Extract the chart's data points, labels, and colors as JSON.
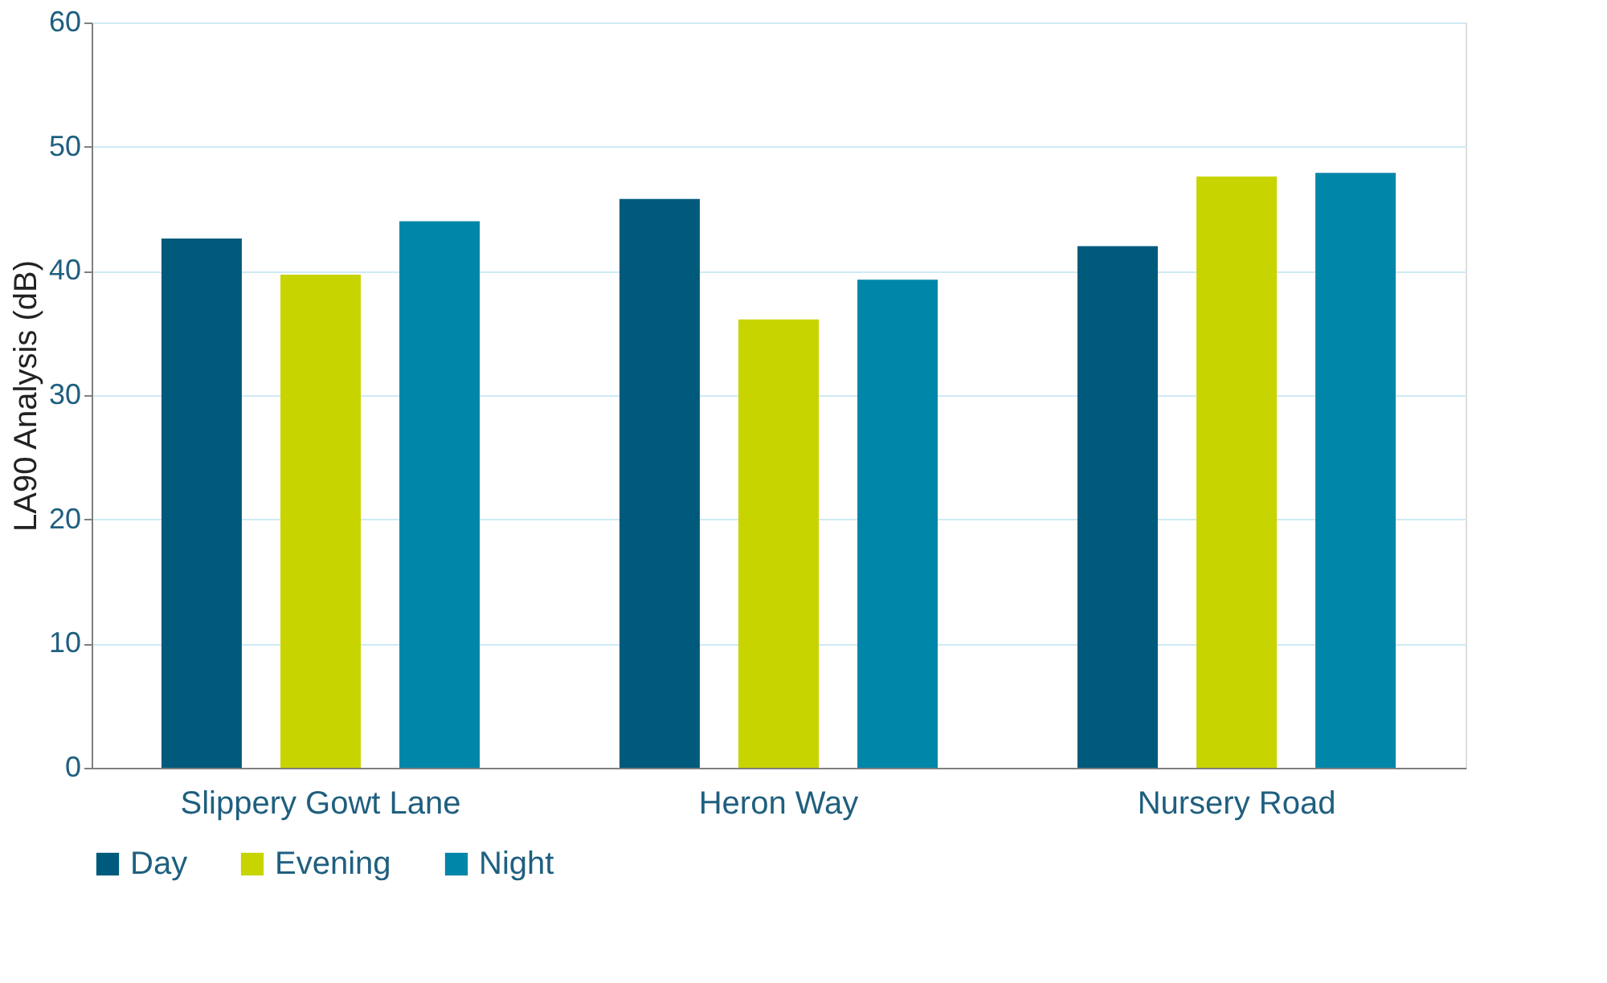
{
  "chart_data": {
    "type": "bar",
    "ylabel": "LA90 Analysis (dB)",
    "categories": [
      "Slippery Gowt Lane",
      "Heron Way",
      "Nursery Road"
    ],
    "series": [
      {
        "name": "Day",
        "color": "#005a7c",
        "values": [
          42.6,
          45.8,
          42.0
        ]
      },
      {
        "name": "Evening",
        "color": "#c8d400",
        "values": [
          39.7,
          36.1,
          47.6
        ]
      },
      {
        "name": "Night",
        "color": "#0086a8",
        "values": [
          44.0,
          39.3,
          47.9
        ]
      }
    ],
    "ylim": [
      0,
      60
    ],
    "yticks": [
      0,
      10,
      20,
      30,
      40,
      50,
      60
    ],
    "grid": "y",
    "legend": "bottom"
  }
}
